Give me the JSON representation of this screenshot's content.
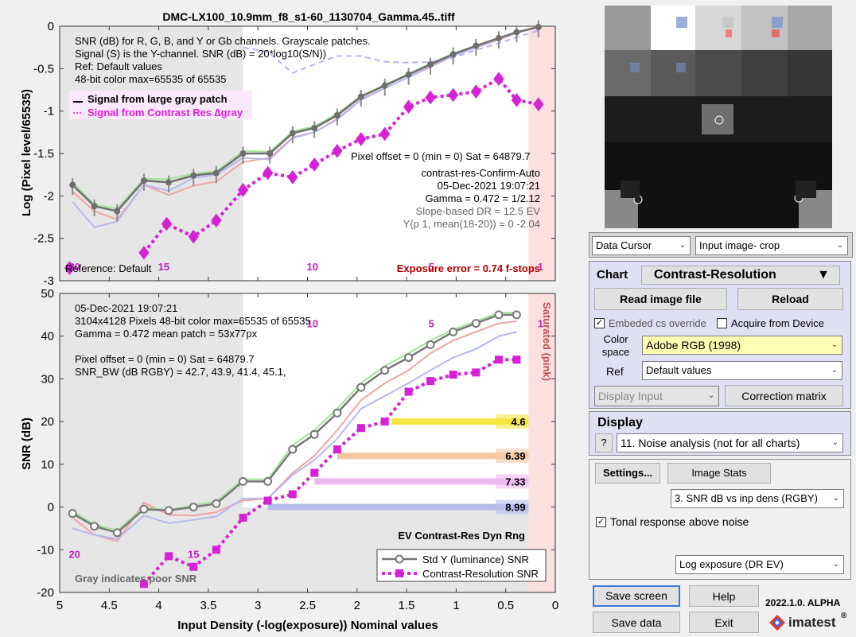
{
  "title": "DMC-LX100_10.9mm_f8_s1-60_1130704_Gamma.45..tiff",
  "top_plot": {
    "ylabel": "Log (Pixel level/65535)",
    "info_lines": [
      "SNR (dB) for R, G, B, and Y or Gb channels.  Grayscale patches.",
      "Signal (S) is the Y-channel.  SNR (dB) = 20*log10(S/N))",
      "Ref: Default values",
      "48-bit color  max=65535 of 65535"
    ],
    "legend": [
      "Signal from large gray patch",
      "Signal from Contrast Res ∆gray"
    ],
    "right_text": [
      "Pixel offset = 0  (min = 0)  Sat = 64879.7",
      "contrast-res-Confirm-Auto",
      "05-Dec-2021 19:07:21",
      "Gamma = 0.472 = 1/2.12",
      "Slope-based DR = 12.5 EV",
      "Y(p 1, mean(18-20)) = 0  -2.04"
    ],
    "reference": "Reference: Default",
    "exposure_error": "Exposure error = 0.74 f-stops",
    "zone_labels": [
      {
        "t": "20",
        "x": 4.85
      },
      {
        "t": "15",
        "x": 3.95
      },
      {
        "t": "10",
        "x": 2.45
      },
      {
        "t": "5",
        "x": 1.25
      },
      {
        "t": "1",
        "x": 0.15
      }
    ]
  },
  "bottom_plot": {
    "ylabel": "SNR (dB)",
    "xlabel": "Input Density (-log(exposure))   Nominal values",
    "info_lines": [
      "05-Dec-2021 19:07:21",
      "3104x4128 Pixels   48-bit color  max=65535 of 65535",
      "Gamma = 0.472   mean patch = 53x77px",
      "",
      "Pixel offset = 0  (min = 0)  Sat = 64879.7",
      "SNR_BW (dB RGBY) = 42.7, 43.9, 41.4, 45.1,"
    ],
    "saturated": "Saturated (pink)",
    "dyn_rng": "EV Contrast-Res Dyn Rng",
    "gray_note": "Gray indicates poor SNR",
    "legend": [
      "Std Y (luminance) SNR",
      "Contrast-Resolution SNR"
    ],
    "zone_labels": [
      {
        "t": "20",
        "x": 4.85,
        "y": -11
      },
      {
        "t": "15",
        "x": 3.65,
        "y": -11
      },
      {
        "t": "10",
        "x": 2.45,
        "y": 43
      },
      {
        "t": "5",
        "x": 1.25,
        "y": 43
      },
      {
        "t": "1",
        "x": 0.15,
        "y": 43
      }
    ],
    "dr_bars": [
      {
        "y": 20,
        "label": "4.6",
        "color": "#f5e642"
      },
      {
        "y": 12,
        "label": "6.39",
        "color": "#f5c8a0"
      },
      {
        "y": 6,
        "label": "7.33",
        "color": "#f0b8f0"
      },
      {
        "y": 0,
        "label": "8.99",
        "color": "#b8bcec"
      }
    ]
  },
  "chart_data": [
    {
      "type": "line",
      "title": "DMC-LX100_10.9mm_f8_s1-60_1130704_Gamma.45..tiff",
      "ylabel": "Log (Pixel level/65535)",
      "xlim": [
        5,
        0
      ],
      "ylim": [
        -3,
        0
      ],
      "x": [
        4.87,
        4.65,
        4.42,
        4.15,
        3.9,
        3.65,
        3.42,
        3.15,
        2.88,
        2.65,
        2.43,
        2.2,
        1.96,
        1.72,
        1.48,
        1.26,
        1.03,
        0.8,
        0.57,
        0.39,
        0.17
      ],
      "series": [
        {
          "name": "Signal from large gray patch",
          "color": "#777777",
          "values": [
            -1.87,
            -2.12,
            -2.18,
            -1.82,
            -1.84,
            -1.76,
            -1.73,
            -1.5,
            -1.5,
            -1.26,
            -1.2,
            -1.05,
            -0.83,
            -0.7,
            -0.57,
            -0.45,
            -0.33,
            -0.23,
            -0.14,
            -0.07,
            -0.01
          ]
        },
        {
          "name": "Signal from Contrast Res ∆gray",
          "color": "#d622d6",
          "values": [
            -2.85,
            null,
            null,
            -2.67,
            -2.33,
            -2.48,
            -2.29,
            -1.93,
            -1.73,
            -1.78,
            -1.63,
            -1.47,
            -1.33,
            -1.27,
            -0.95,
            -0.84,
            -0.81,
            -0.77,
            -0.62,
            -0.87,
            -0.92
          ],
          "x": [
            4.9,
            null,
            null,
            4.15,
            3.92,
            3.65,
            3.42,
            3.15,
            2.9,
            2.65,
            2.43,
            2.2,
            1.96,
            1.72,
            1.48,
            1.26,
            1.03,
            0.8,
            0.57,
            0.39,
            0.17
          ]
        }
      ]
    },
    {
      "type": "line",
      "xlabel": "Input Density (-log(exposure))   Nominal values",
      "ylabel": "SNR (dB)",
      "xlim": [
        5,
        0
      ],
      "ylim": [
        -20,
        50
      ],
      "x": [
        4.87,
        4.65,
        4.42,
        4.15,
        3.9,
        3.65,
        3.42,
        3.15,
        2.9,
        2.65,
        2.43,
        2.2,
        1.96,
        1.72,
        1.48,
        1.26,
        1.03,
        0.8,
        0.57,
        0.39
      ],
      "series": [
        {
          "name": "Std Y (luminance) SNR",
          "color": "#777777",
          "values": [
            -1.5,
            -4.5,
            -6,
            -0.5,
            -0.8,
            0,
            0.8,
            6,
            6,
            13.5,
            17,
            22,
            28,
            32,
            35,
            38,
            41,
            43,
            45,
            45
          ]
        },
        {
          "name": "Contrast-Resolution SNR",
          "color": "#d622d6",
          "values": [
            null,
            null,
            null,
            -18,
            -11.5,
            -14,
            -10,
            -2.5,
            1.5,
            3,
            8,
            13.5,
            18.5,
            20,
            27,
            29.5,
            31,
            31.5,
            34.5,
            34.5
          ]
        }
      ]
    }
  ],
  "image_panel": {},
  "controls": {
    "cursor_select": "Data Cursor",
    "view_select": "Input image- crop",
    "chart_label": "Chart",
    "chart_type": "Contrast-Resolution",
    "read_image": "Read image file",
    "reload": "Reload",
    "embedded_cs": "Embeded cs override",
    "acquire": "Acquire from Device",
    "color_space_label": "Color space",
    "color_space": "Adobe RGB (1998)",
    "ref_label": "Ref",
    "ref_value": "Default values",
    "display_input": "Display Input",
    "correction_matrix": "Correction matrix",
    "display_label": "Display",
    "help_q": "?",
    "display_value": "11. Noise analysis (not for all charts)",
    "settings": "Settings...",
    "image_stats": "Image Stats",
    "snr_select": "3.  SNR dB vs inp dens (RGBY)",
    "tonal": "Tonal response above noise",
    "log_exposure": "Log exposure (DR EV)",
    "save_screen": "Save screen",
    "help": "Help",
    "version": "2022.1.0. ALPHA",
    "save_data": "Save data",
    "exit": "Exit",
    "brand": "imatest"
  }
}
